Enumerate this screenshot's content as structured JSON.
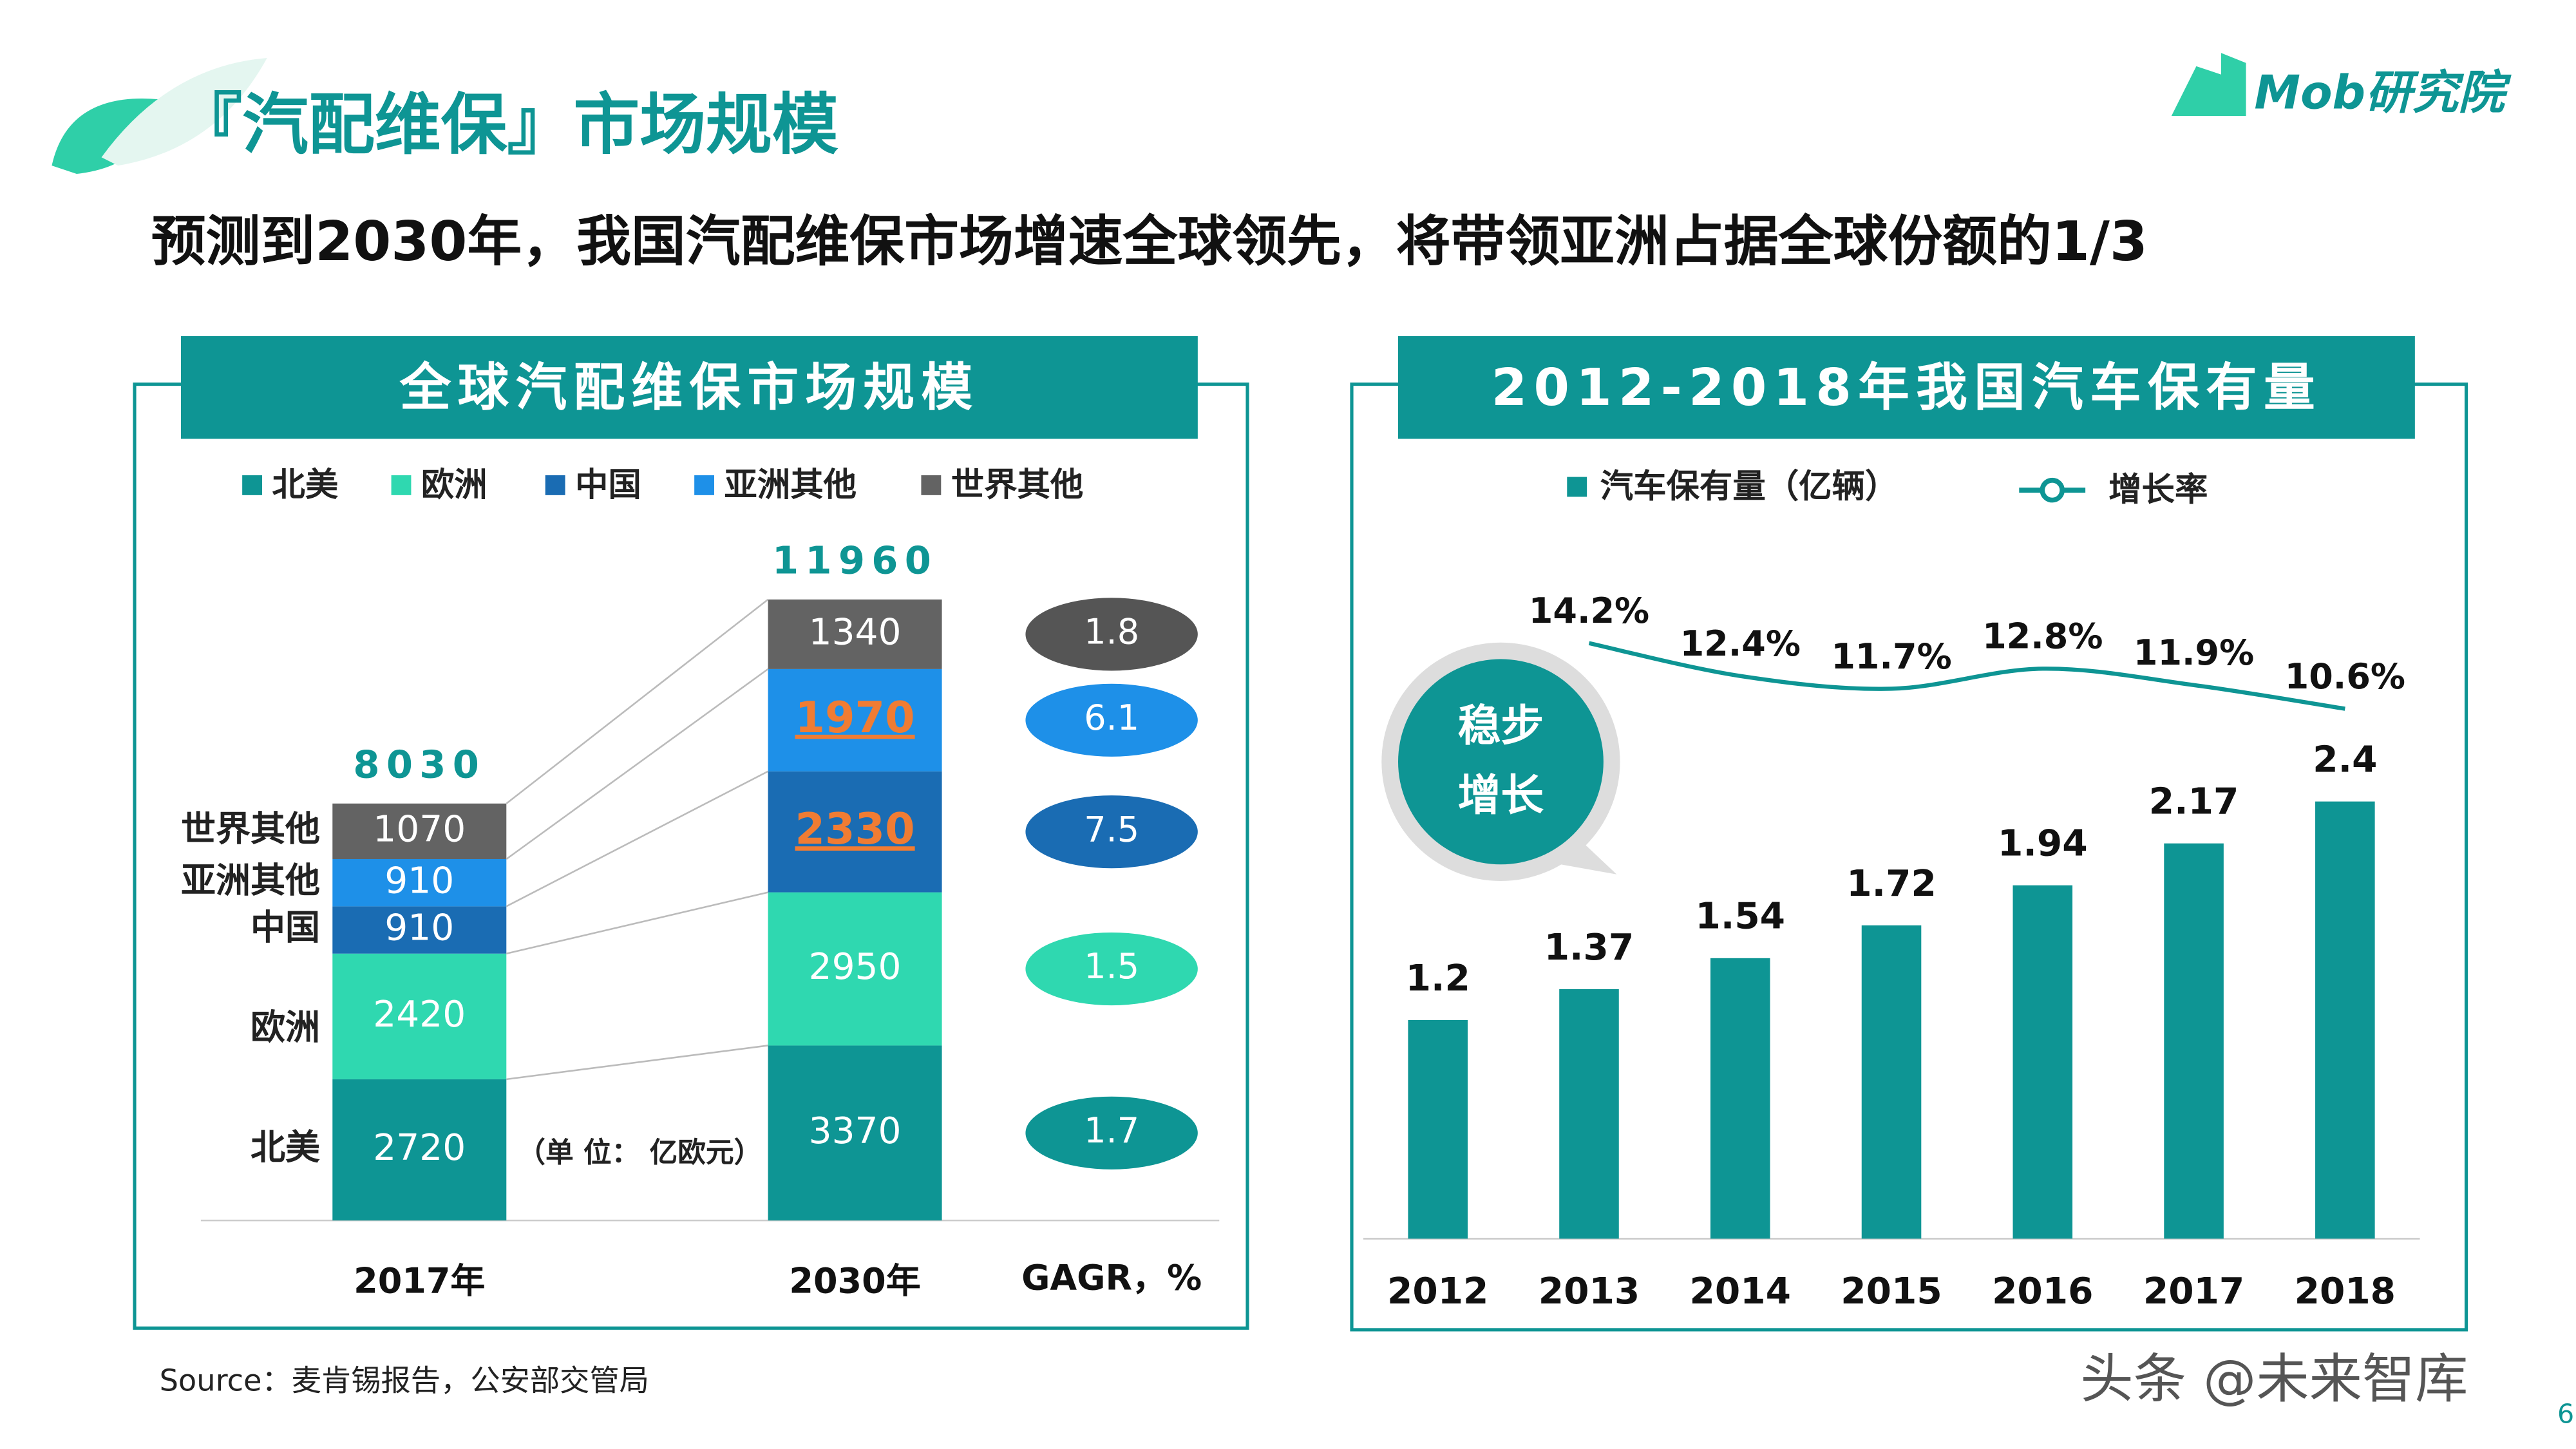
{
  "header": {
    "title": "『汽配维保』市场规模",
    "subtitle": "预测到2030年，我国汽配维保市场增速全球领先，将带领亚洲占据全球份额的1/3",
    "logo": "Mob研究院"
  },
  "chart_data": [
    {
      "type": "stacked-bar",
      "title": "全球汽配维保市场规模",
      "categories": [
        "2017年",
        "2030年"
      ],
      "series": [
        {
          "name": "北美",
          "color": "#0e9594",
          "values": [
            2720,
            3370
          ],
          "gagr": 1.7
        },
        {
          "name": "欧洲",
          "color": "#2fd8b0",
          "values": [
            2420,
            2950
          ],
          "gagr": 1.5
        },
        {
          "name": "中国",
          "color": "#1a6cb3",
          "values": [
            910,
            2330
          ],
          "gagr": 7.5,
          "highlight": true
        },
        {
          "name": "亚洲其他",
          "color": "#1e90e8",
          "values": [
            910,
            1970
          ],
          "gagr": 6.1,
          "highlight": true
        },
        {
          "name": "世界其他",
          "color": "#636363",
          "values": [
            1070,
            1340
          ],
          "gagr": 1.8
        }
      ],
      "totals": [
        8030,
        11960
      ],
      "highlight_category": "2030年",
      "highlight_color": "#f07c33",
      "unit_note": "（单 位： 亿欧元）",
      "gagr_label": "GAGR，%"
    },
    {
      "type": "bar-line",
      "title": "2012-2018年我国汽车保有量",
      "categories": [
        "2012",
        "2013",
        "2014",
        "2015",
        "2016",
        "2017",
        "2018"
      ],
      "series": [
        {
          "name": "汽车保有量（亿辆）",
          "color": "#0e9594",
          "values": [
            1.2,
            1.37,
            1.54,
            1.72,
            1.94,
            2.17,
            2.4
          ]
        },
        {
          "name": "增长率",
          "color": "#0e9594",
          "axis": "y2",
          "values": [
            null,
            14.2,
            12.4,
            11.7,
            12.8,
            11.9,
            10.6
          ],
          "value_labels": [
            null,
            "14.2%",
            "12.4%",
            "11.7%",
            "12.8%",
            "11.9%",
            "10.6%"
          ]
        }
      ],
      "annotation": [
        "稳步",
        "增长"
      ]
    }
  ],
  "footer": {
    "source": "Source：麦肯锡报告，公安部交管局",
    "watermark": "头条 @未来智库",
    "page": "6"
  }
}
